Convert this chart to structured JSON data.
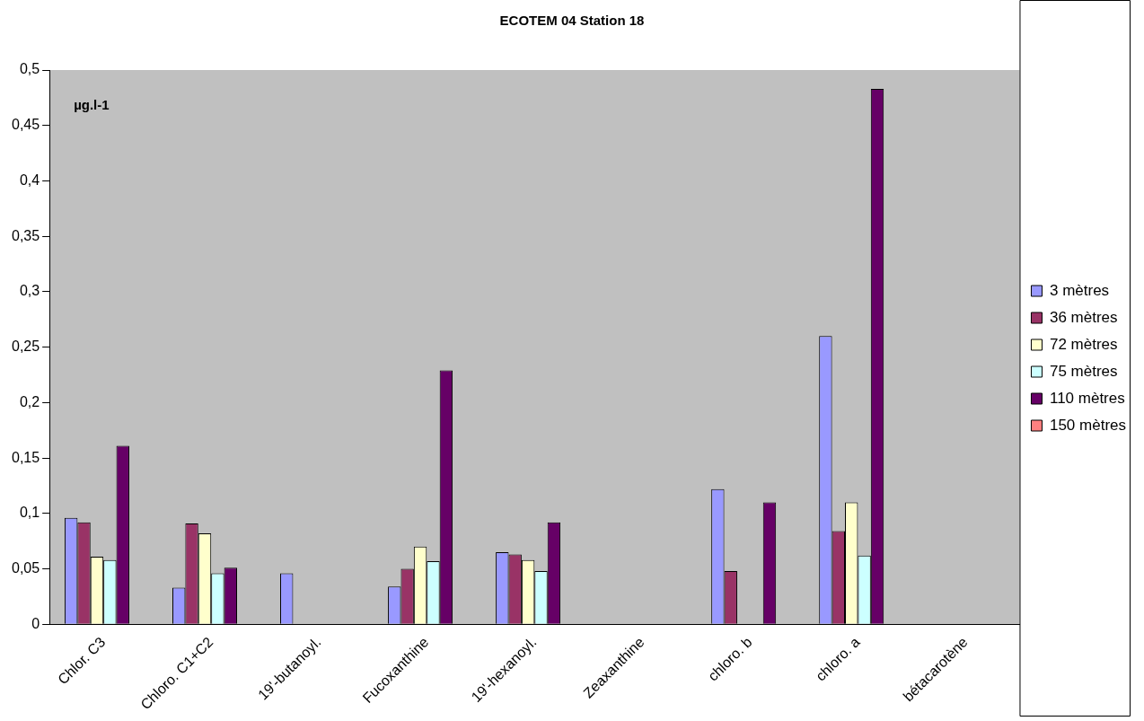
{
  "chart_data": {
    "type": "bar",
    "title": "ECOTEM 04 Station 18",
    "categories": [
      "Chlor. C3",
      "Chloro. C1+C2",
      "19'-butanoyl.",
      "Fucoxanthine",
      "19'-hexanoyl.",
      "Zeaxanthine",
      "chloro. b",
      "chloro. a",
      "bétacarotène"
    ],
    "series": [
      {
        "name": "3 mètres",
        "color": "#9999ff",
        "values": [
          0.096,
          0.033,
          0.046,
          0.034,
          0.065,
          null,
          0.122,
          0.26,
          null
        ]
      },
      {
        "name": "36 mètres",
        "color": "#993366",
        "values": [
          0.092,
          0.091,
          null,
          0.05,
          0.063,
          null,
          0.048,
          0.084,
          null
        ]
      },
      {
        "name": "72 mètres",
        "color": "#ffffcc",
        "values": [
          0.061,
          0.082,
          null,
          0.07,
          0.058,
          null,
          null,
          0.11,
          null
        ]
      },
      {
        "name": "75 mètres",
        "color": "#ccffff",
        "values": [
          0.058,
          0.046,
          null,
          0.057,
          0.048,
          null,
          null,
          0.062,
          null
        ]
      },
      {
        "name": "110 mètres",
        "color": "#660066",
        "values": [
          0.161,
          0.051,
          null,
          0.229,
          0.092,
          null,
          0.11,
          0.483,
          null
        ]
      },
      {
        "name": "150 mètres",
        "color": "#ff8080",
        "values": [
          null,
          null,
          null,
          null,
          null,
          null,
          null,
          null,
          null
        ]
      }
    ],
    "ylim": [
      0,
      0.5
    ],
    "yticks": [
      0,
      {
        "value": 0.05,
        "label": "0,05"
      },
      {
        "value": 0.1,
        "label": "0,1"
      },
      {
        "value": 0.15,
        "label": "0,15"
      },
      {
        "value": 0.2,
        "label": "0,2"
      },
      {
        "value": 0.25,
        "label": "0,25"
      },
      {
        "value": 0.3,
        "label": "0,3"
      },
      {
        "value": 0.35,
        "label": "0,35"
      },
      {
        "value": 0.4,
        "label": "0,4"
      },
      {
        "value": 0.45,
        "label": "0,45"
      },
      {
        "value": 0.5,
        "label": "0,5"
      }
    ],
    "grid": false,
    "legend": "right",
    "annotations": [
      "µg.l-1"
    ]
  }
}
